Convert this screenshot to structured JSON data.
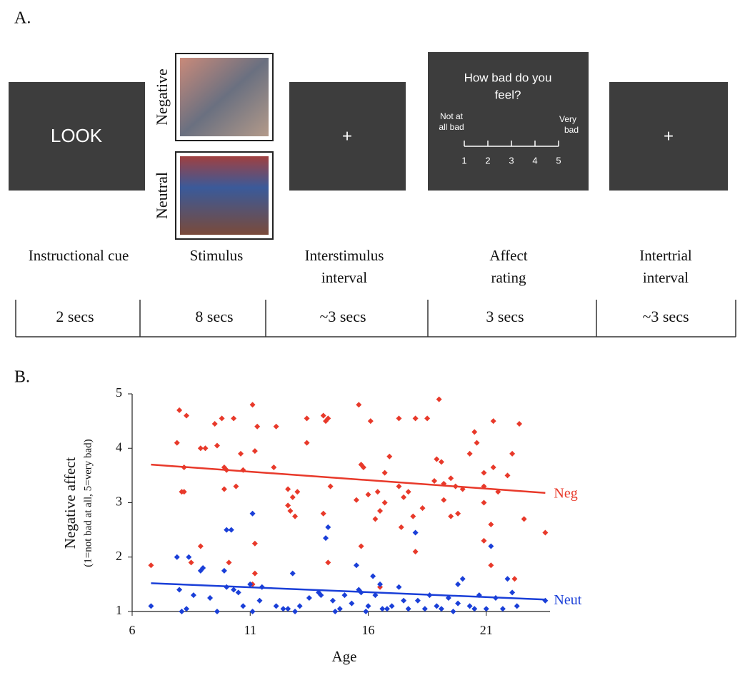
{
  "panel_a": {
    "label": "A.",
    "cue_text": "LOOK",
    "stimulus_labels": [
      "Negative",
      "Neutral"
    ],
    "fixation": "+",
    "question_lines": [
      "How bad do you",
      "feel?"
    ],
    "low_anchor_lines": [
      "Not at",
      "all bad"
    ],
    "high_anchor_lines": [
      "Very",
      "bad"
    ],
    "scale": [
      1,
      2,
      3,
      4,
      5
    ],
    "phases": [
      {
        "name_lines": [
          "Instructional cue"
        ],
        "duration": "2 secs"
      },
      {
        "name_lines": [
          "Stimulus"
        ],
        "duration": "8 secs"
      },
      {
        "name_lines": [
          "Interstimulus",
          "interval"
        ],
        "duration": "~3 secs"
      },
      {
        "name_lines": [
          "Affect",
          "rating"
        ],
        "duration": "3 secs"
      },
      {
        "name_lines": [
          "Intertrial",
          "interval"
        ],
        "duration": "~3 secs"
      }
    ]
  },
  "chart_data": {
    "type": "scatter",
    "panel_label": "B.",
    "xlabel": "Age",
    "ylabel": "Negative affect",
    "ylabel_sub": "(1=not bad at all, 5=very bad)",
    "xlim": [
      6,
      23.7
    ],
    "ylim": [
      1,
      5
    ],
    "xticks": [
      6,
      11,
      16,
      21
    ],
    "yticks": [
      1,
      2,
      3,
      4,
      5
    ],
    "series": [
      {
        "name": "Neg",
        "color": "#e8392a",
        "x": [
          6.8,
          7.9,
          8.0,
          8.1,
          8.2,
          8.2,
          8.3,
          8.5,
          8.9,
          9.1,
          8.9,
          9.5,
          9.6,
          9.8,
          9.9,
          9.9,
          10.0,
          10.1,
          10.3,
          10.4,
          10.6,
          10.7,
          11.1,
          11.2,
          11.2,
          11.2,
          11.1,
          11.3,
          12.0,
          12.1,
          12.6,
          12.6,
          12.7,
          12.8,
          12.9,
          13.0,
          13.4,
          13.4,
          14.1,
          14.1,
          14.2,
          14.3,
          14.4,
          14.3,
          15.6,
          15.5,
          15.7,
          15.8,
          15.7,
          16.0,
          16.1,
          16.3,
          16.4,
          16.5,
          16.7,
          16.7,
          16.9,
          17.3,
          17.3,
          17.5,
          18.0,
          17.7,
          17.9,
          18.3,
          18.5,
          18.8,
          18.9,
          19.0,
          19.1,
          19.2,
          19.2,
          19.5,
          19.5,
          19.8,
          20.0,
          20.3,
          20.5,
          20.6,
          20.9,
          20.9,
          20.9,
          21.2,
          21.3,
          21.3,
          21.5,
          21.9,
          22.1,
          22.2,
          22.4,
          22.6,
          23.5,
          18.0,
          17.4,
          21.2,
          16.5,
          19.7,
          20.9
        ],
        "values": [
          1.85,
          4.1,
          4.7,
          3.2,
          3.2,
          3.65,
          4.6,
          1.9,
          4.0,
          4.0,
          2.2,
          4.45,
          4.05,
          4.55,
          3.65,
          3.25,
          3.6,
          1.9,
          4.55,
          3.3,
          3.9,
          3.6,
          4.8,
          3.95,
          2.25,
          1.7,
          1.5,
          4.4,
          3.65,
          4.4,
          3.25,
          2.95,
          2.85,
          3.1,
          2.75,
          3.2,
          4.55,
          4.1,
          4.6,
          2.8,
          4.5,
          4.55,
          3.3,
          1.9,
          4.8,
          3.05,
          3.7,
          3.65,
          2.2,
          3.15,
          4.5,
          2.7,
          3.2,
          2.85,
          3.0,
          3.55,
          3.85,
          4.55,
          3.3,
          3.1,
          4.55,
          3.2,
          2.75,
          2.9,
          4.55,
          3.4,
          3.8,
          4.9,
          3.75,
          3.05,
          3.35,
          2.75,
          3.45,
          2.8,
          3.25,
          3.9,
          4.3,
          4.1,
          3.55,
          3.3,
          3.0,
          2.6,
          4.5,
          3.65,
          3.2,
          3.5,
          3.9,
          1.6,
          4.45,
          2.7,
          2.45,
          2.1,
          2.55,
          1.85,
          1.45,
          3.3,
          2.3
        ],
        "trend_x": [
          6.8,
          23.5
        ],
        "trend_values": [
          3.7,
          3.18
        ]
      },
      {
        "name": "Neut",
        "color": "#1a3fd8",
        "x": [
          6.8,
          7.9,
          8.1,
          8.3,
          8.0,
          8.4,
          8.6,
          8.9,
          9.0,
          9.3,
          9.6,
          9.9,
          10.0,
          10.2,
          10.0,
          10.3,
          10.5,
          10.7,
          11.0,
          11.1,
          11.1,
          11.4,
          11.5,
          12.1,
          12.4,
          12.6,
          12.8,
          12.9,
          13.1,
          13.5,
          13.9,
          14.0,
          14.2,
          14.3,
          14.5,
          14.8,
          15.0,
          15.3,
          15.5,
          15.6,
          15.7,
          15.9,
          16.0,
          16.2,
          16.3,
          16.6,
          16.8,
          17.0,
          17.3,
          17.5,
          17.7,
          18.0,
          18.1,
          18.4,
          18.6,
          18.9,
          19.1,
          19.4,
          19.6,
          19.8,
          20.0,
          20.3,
          20.5,
          20.7,
          21.0,
          21.2,
          21.4,
          21.7,
          21.9,
          22.1,
          22.3,
          23.5,
          16.5,
          19.8,
          14.6
        ],
        "values": [
          1.1,
          2.0,
          1.0,
          1.05,
          1.4,
          2.0,
          1.3,
          1.75,
          1.8,
          1.25,
          1.0,
          1.75,
          2.5,
          2.5,
          1.45,
          1.4,
          1.35,
          1.1,
          1.5,
          2.8,
          1.0,
          1.2,
          1.45,
          1.1,
          1.05,
          1.05,
          1.7,
          1.0,
          1.1,
          1.25,
          1.35,
          1.3,
          2.35,
          2.55,
          1.2,
          1.05,
          1.3,
          1.15,
          1.85,
          1.4,
          1.35,
          1.0,
          1.1,
          1.65,
          1.3,
          1.05,
          1.05,
          1.1,
          1.45,
          1.2,
          1.05,
          2.45,
          1.2,
          1.05,
          1.3,
          1.1,
          1.05,
          1.25,
          1.0,
          1.5,
          1.6,
          1.1,
          1.05,
          1.3,
          1.05,
          2.2,
          1.25,
          1.05,
          1.6,
          1.35,
          1.1,
          1.2,
          1.5,
          1.15,
          1.0
        ],
        "trend_x": [
          6.8,
          23.5
        ],
        "trend_values": [
          1.52,
          1.22
        ]
      }
    ]
  }
}
